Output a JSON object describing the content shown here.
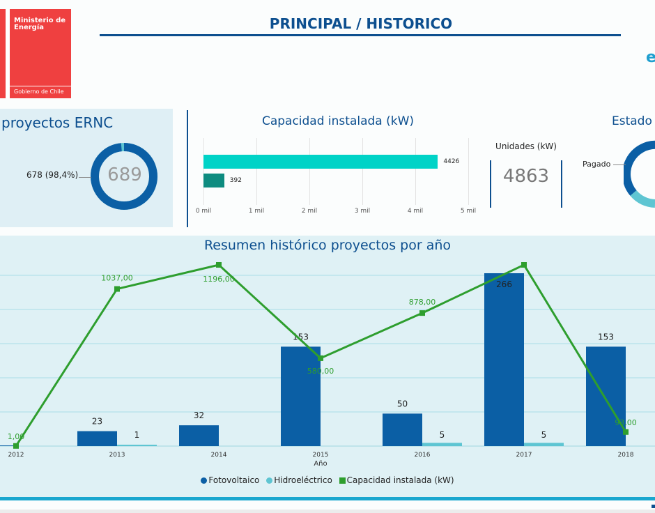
{
  "header": {
    "title": "PRINCIPAL / HISTORICO",
    "corner_glyph": "e",
    "logo": {
      "line1": "Ministerio de Energía",
      "line2": "Gobierno de Chile"
    }
  },
  "ernc": {
    "title": "proyectos ERNC",
    "center_value": "689",
    "segment_label": "678 (98,4%)",
    "segment_fraction": 0.984,
    "colors": {
      "main": "#0b5fa5",
      "rest": "#5ec5d2"
    }
  },
  "capacity": {
    "title": "Capacidad instalada (kW)",
    "ticks": [
      "0 mil",
      "1 mil",
      "2 mil",
      "3 mil",
      "4 mil",
      "5 mil"
    ],
    "bars": [
      {
        "value": 4426,
        "label": "4426",
        "color": "#00d3c7"
      },
      {
        "value": 392,
        "label": "392",
        "color": "#0e8c80"
      }
    ],
    "units_label": "Unidades (kW)",
    "units_value": "4863"
  },
  "estado": {
    "title": "Estado",
    "label": "Pagado"
  },
  "chart_data": {
    "type": "bar",
    "title": "Resumen histórico proyectos por año",
    "xlabel": "Año",
    "categories": [
      "2012",
      "2013",
      "2014",
      "2015",
      "2016",
      "2017",
      "2018"
    ],
    "series": [
      {
        "name": "Fotovoltaico",
        "kind": "bar",
        "color": "#0b5fa5",
        "values": [
          1,
          23,
          32,
          153,
          50,
          266,
          153
        ],
        "labels": [
          "",
          "23",
          "32",
          "153",
          "50",
          "266",
          "153"
        ]
      },
      {
        "name": "Hidroeléctrico",
        "kind": "bar",
        "color": "#5ec5d2",
        "values": [
          0,
          1,
          0,
          0,
          5,
          5,
          0
        ],
        "labels": [
          "",
          "1",
          "",
          "",
          "5",
          "5",
          ""
        ]
      },
      {
        "name": "Capacidad instalada (kW)",
        "kind": "line",
        "color": "#2e9e2e",
        "values": [
          1,
          1037,
          1196,
          580,
          878,
          1196,
          93
        ],
        "labels": [
          "1,00",
          "1037,00",
          "1196,00",
          "580,00",
          "878,00",
          "",
          "93,00"
        ]
      }
    ],
    "legend_position": "bottom",
    "grid": true
  }
}
